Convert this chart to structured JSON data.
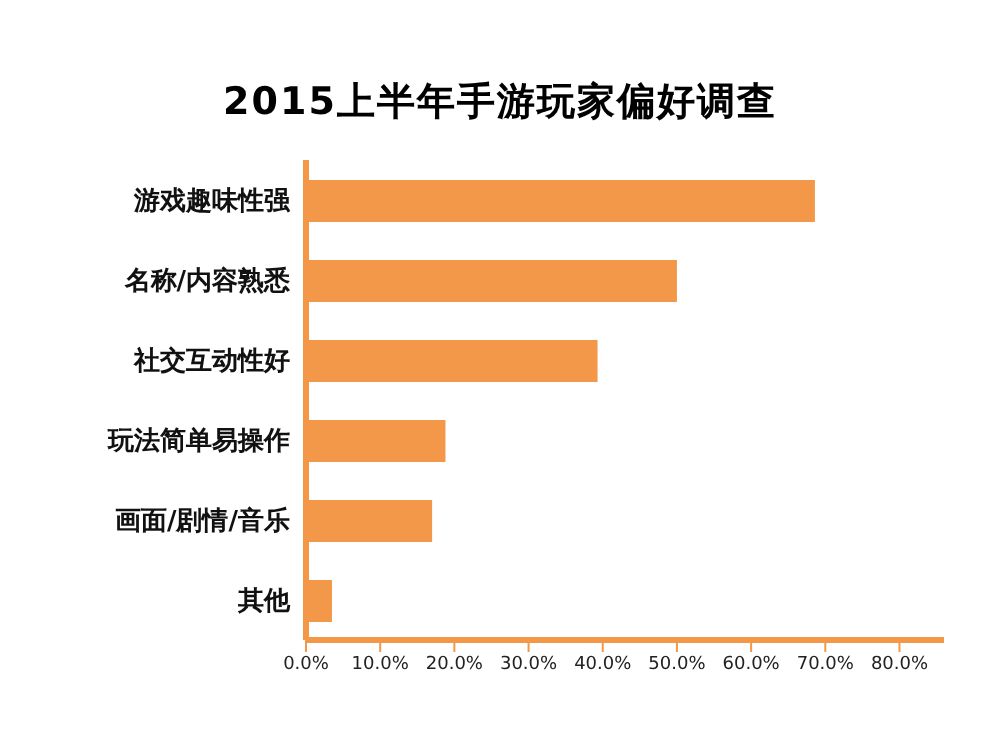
{
  "chart_data": {
    "type": "bar",
    "orientation": "horizontal",
    "title": "2015上半年手游玩家偏好调查",
    "categories": [
      "游戏趣味性强",
      "名称/内容熟悉",
      "社交互动性好",
      "玩法简单易操作",
      "画面/剧情/音乐",
      "其他"
    ],
    "values": [
      68.6,
      50.0,
      39.3,
      18.8,
      17.0,
      3.5
    ],
    "color": "#f39849",
    "xlim": [
      0,
      86
    ],
    "xticks": [
      {
        "value": 0,
        "label": "0.0%"
      },
      {
        "value": 10,
        "label": "10.0%"
      },
      {
        "value": 20,
        "label": "20.0%"
      },
      {
        "value": 30,
        "label": "30.0%"
      },
      {
        "value": 40,
        "label": "40.0%"
      },
      {
        "value": 50,
        "label": "50.0%"
      },
      {
        "value": 60,
        "label": "60.0%"
      },
      {
        "value": 70,
        "label": "70.0%"
      },
      {
        "value": 80,
        "label": "80.0%"
      }
    ],
    "grid": false
  }
}
